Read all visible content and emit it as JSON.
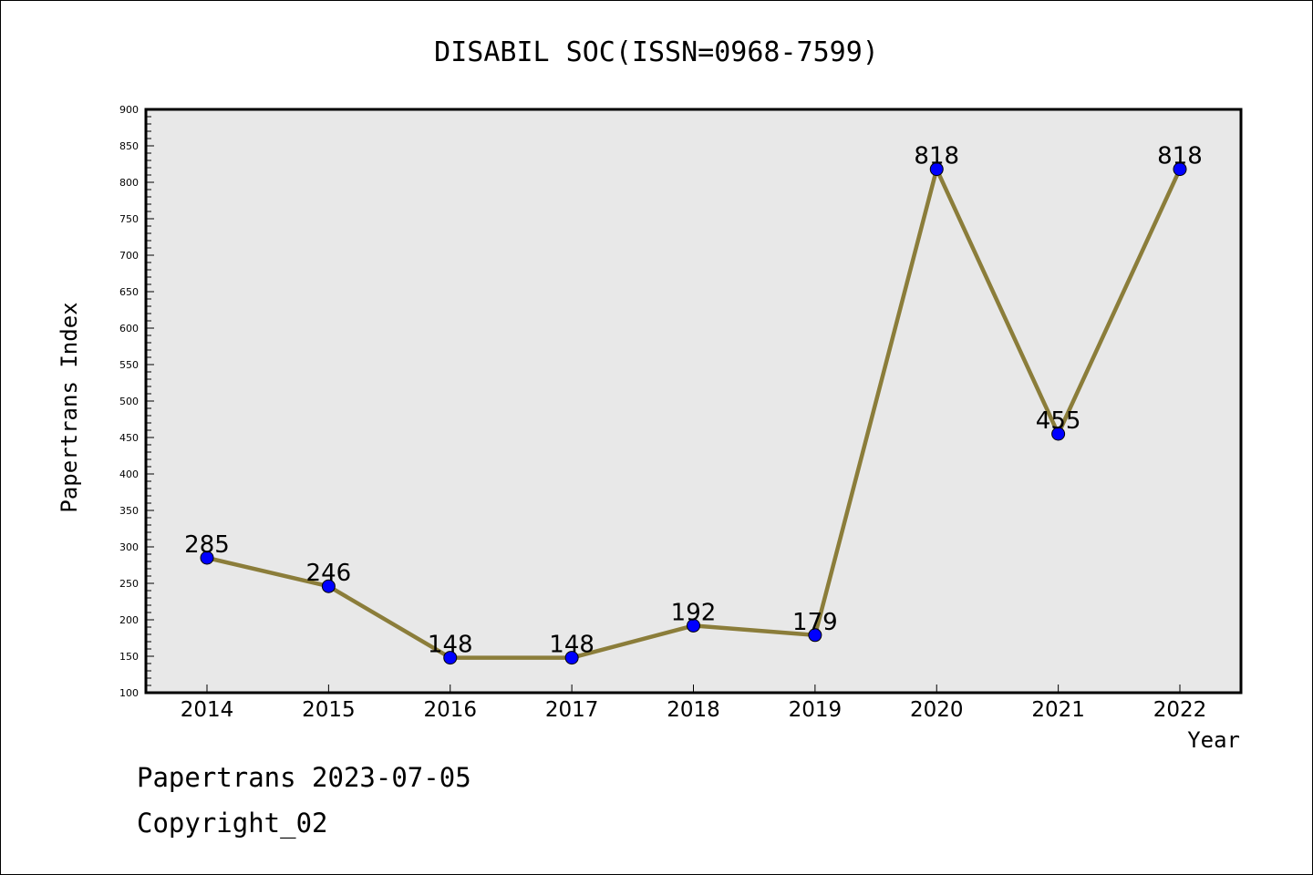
{
  "chart_data": {
    "type": "line",
    "title": "DISABIL SOC(ISSN=0968-7599)",
    "xlabel": "Year",
    "ylabel": "Papertrans Index",
    "categories": [
      "2014",
      "2015",
      "2016",
      "2017",
      "2018",
      "2019",
      "2020",
      "2021",
      "2022"
    ],
    "values": [
      285,
      246,
      148,
      148,
      192,
      179,
      818,
      455,
      818
    ],
    "ylim": [
      100,
      900
    ],
    "yticks": [
      100,
      150,
      200,
      250,
      300,
      350,
      400,
      450,
      500,
      550,
      600,
      650,
      700,
      750,
      800,
      850,
      900
    ],
    "grid": false,
    "line_color": "#8b7d3a",
    "marker_color": "#0000ff",
    "plot_background": "#e8e8e8"
  },
  "footer": {
    "date_line": "Papertrans 2023-07-05",
    "copyright": "Copyright_02"
  }
}
